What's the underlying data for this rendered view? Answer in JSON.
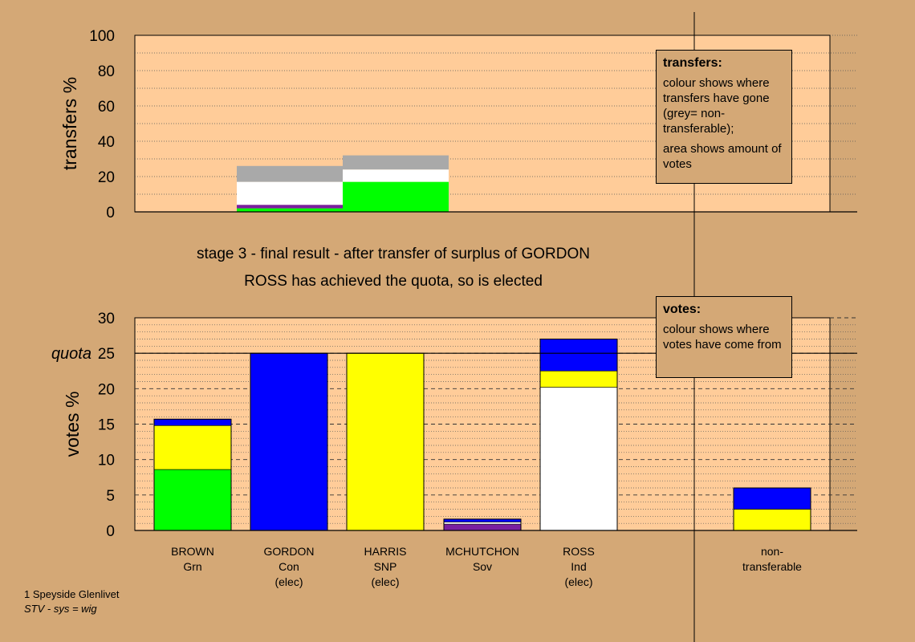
{
  "titles": {
    "line1": "stage 3 - final result - after transfer of surplus of GORDON",
    "line2": "ROSS has achieved the quota, so is elected"
  },
  "footer": {
    "line1": "1 Speyside Glenlivet",
    "line2": "STV - sys = wig"
  },
  "legends": {
    "transfers": {
      "title": "transfers:",
      "text1": "colour shows where transfers have gone (grey= non-transferable);",
      "text2": "area shows amount of votes"
    },
    "votes": {
      "title": "votes:",
      "text1": "colour shows where votes have come from"
    }
  },
  "candidates": [
    {
      "name": "BROWN",
      "party": "Grn",
      "status": ""
    },
    {
      "name": "GORDON",
      "party": "Con",
      "status": "(elec)"
    },
    {
      "name": "HARRIS",
      "party": "SNP",
      "status": "(elec)"
    },
    {
      "name": "MCHUTCHON",
      "party": "Sov",
      "status": ""
    },
    {
      "name": "ROSS",
      "party": "Ind",
      "status": "(elec)"
    },
    {
      "name": "non-",
      "party": "transferable",
      "status": ""
    }
  ],
  "colors": {
    "background": "#d4a876",
    "plot": "#ffcc99",
    "green": "#00ff00",
    "blue": "#0000ff",
    "yellow": "#ffff00",
    "white": "#ffffff",
    "purple": "#7a1fa0",
    "grey": "#a9a9a9"
  },
  "chart_data": [
    {
      "type": "bar",
      "title": "",
      "ylabel": "transfers %",
      "ylim": [
        0,
        100
      ],
      "yticks": [
        0,
        20,
        40,
        60,
        80,
        100
      ],
      "grid": "dotted",
      "segments": [
        {
          "x0": 1,
          "x1": 2.1,
          "y0": 0,
          "y1": 2,
          "color": "green"
        },
        {
          "x0": 1,
          "x1": 2.1,
          "y0": 2,
          "y1": 4,
          "color": "purple"
        },
        {
          "x0": 1,
          "x1": 2.1,
          "y0": 4,
          "y1": 17,
          "color": "white"
        },
        {
          "x0": 1,
          "x1": 2.1,
          "y0": 17,
          "y1": 26,
          "color": "grey"
        },
        {
          "x0": 2.1,
          "x1": 3.2,
          "y0": 0,
          "y1": 17,
          "color": "green"
        },
        {
          "x0": 2.1,
          "x1": 3.2,
          "y0": 17,
          "y1": 24,
          "color": "white"
        },
        {
          "x0": 2.1,
          "x1": 3.2,
          "y0": 24,
          "y1": 32,
          "color": "grey"
        }
      ]
    },
    {
      "type": "bar",
      "title": "",
      "ylabel": "votes %",
      "ylim": [
        0,
        30
      ],
      "yticks": [
        0,
        5,
        10,
        15,
        20,
        25,
        30
      ],
      "quota": 25,
      "quota_label": "quota",
      "categories": [
        "BROWN",
        "GORDON",
        "HARRIS",
        "MCHUTCHON",
        "ROSS",
        "non-transferable"
      ],
      "stacks": [
        [
          {
            "value": 8.6,
            "color": "green"
          },
          {
            "value": 6.2,
            "color": "yellow"
          },
          {
            "value": 0.9,
            "color": "blue"
          }
        ],
        [
          {
            "value": 25,
            "color": "blue"
          }
        ],
        [
          {
            "value": 25,
            "color": "yellow"
          }
        ],
        [
          {
            "value": 0.9,
            "color": "purple"
          },
          {
            "value": 0.3,
            "color": "white"
          },
          {
            "value": 0.4,
            "color": "blue"
          }
        ],
        [
          {
            "value": 20.2,
            "color": "white"
          },
          {
            "value": 2.3,
            "color": "yellow"
          },
          {
            "value": 4.5,
            "color": "blue"
          }
        ],
        [
          {
            "value": 3.0,
            "color": "yellow"
          },
          {
            "value": 3.0,
            "color": "blue"
          }
        ]
      ]
    }
  ]
}
